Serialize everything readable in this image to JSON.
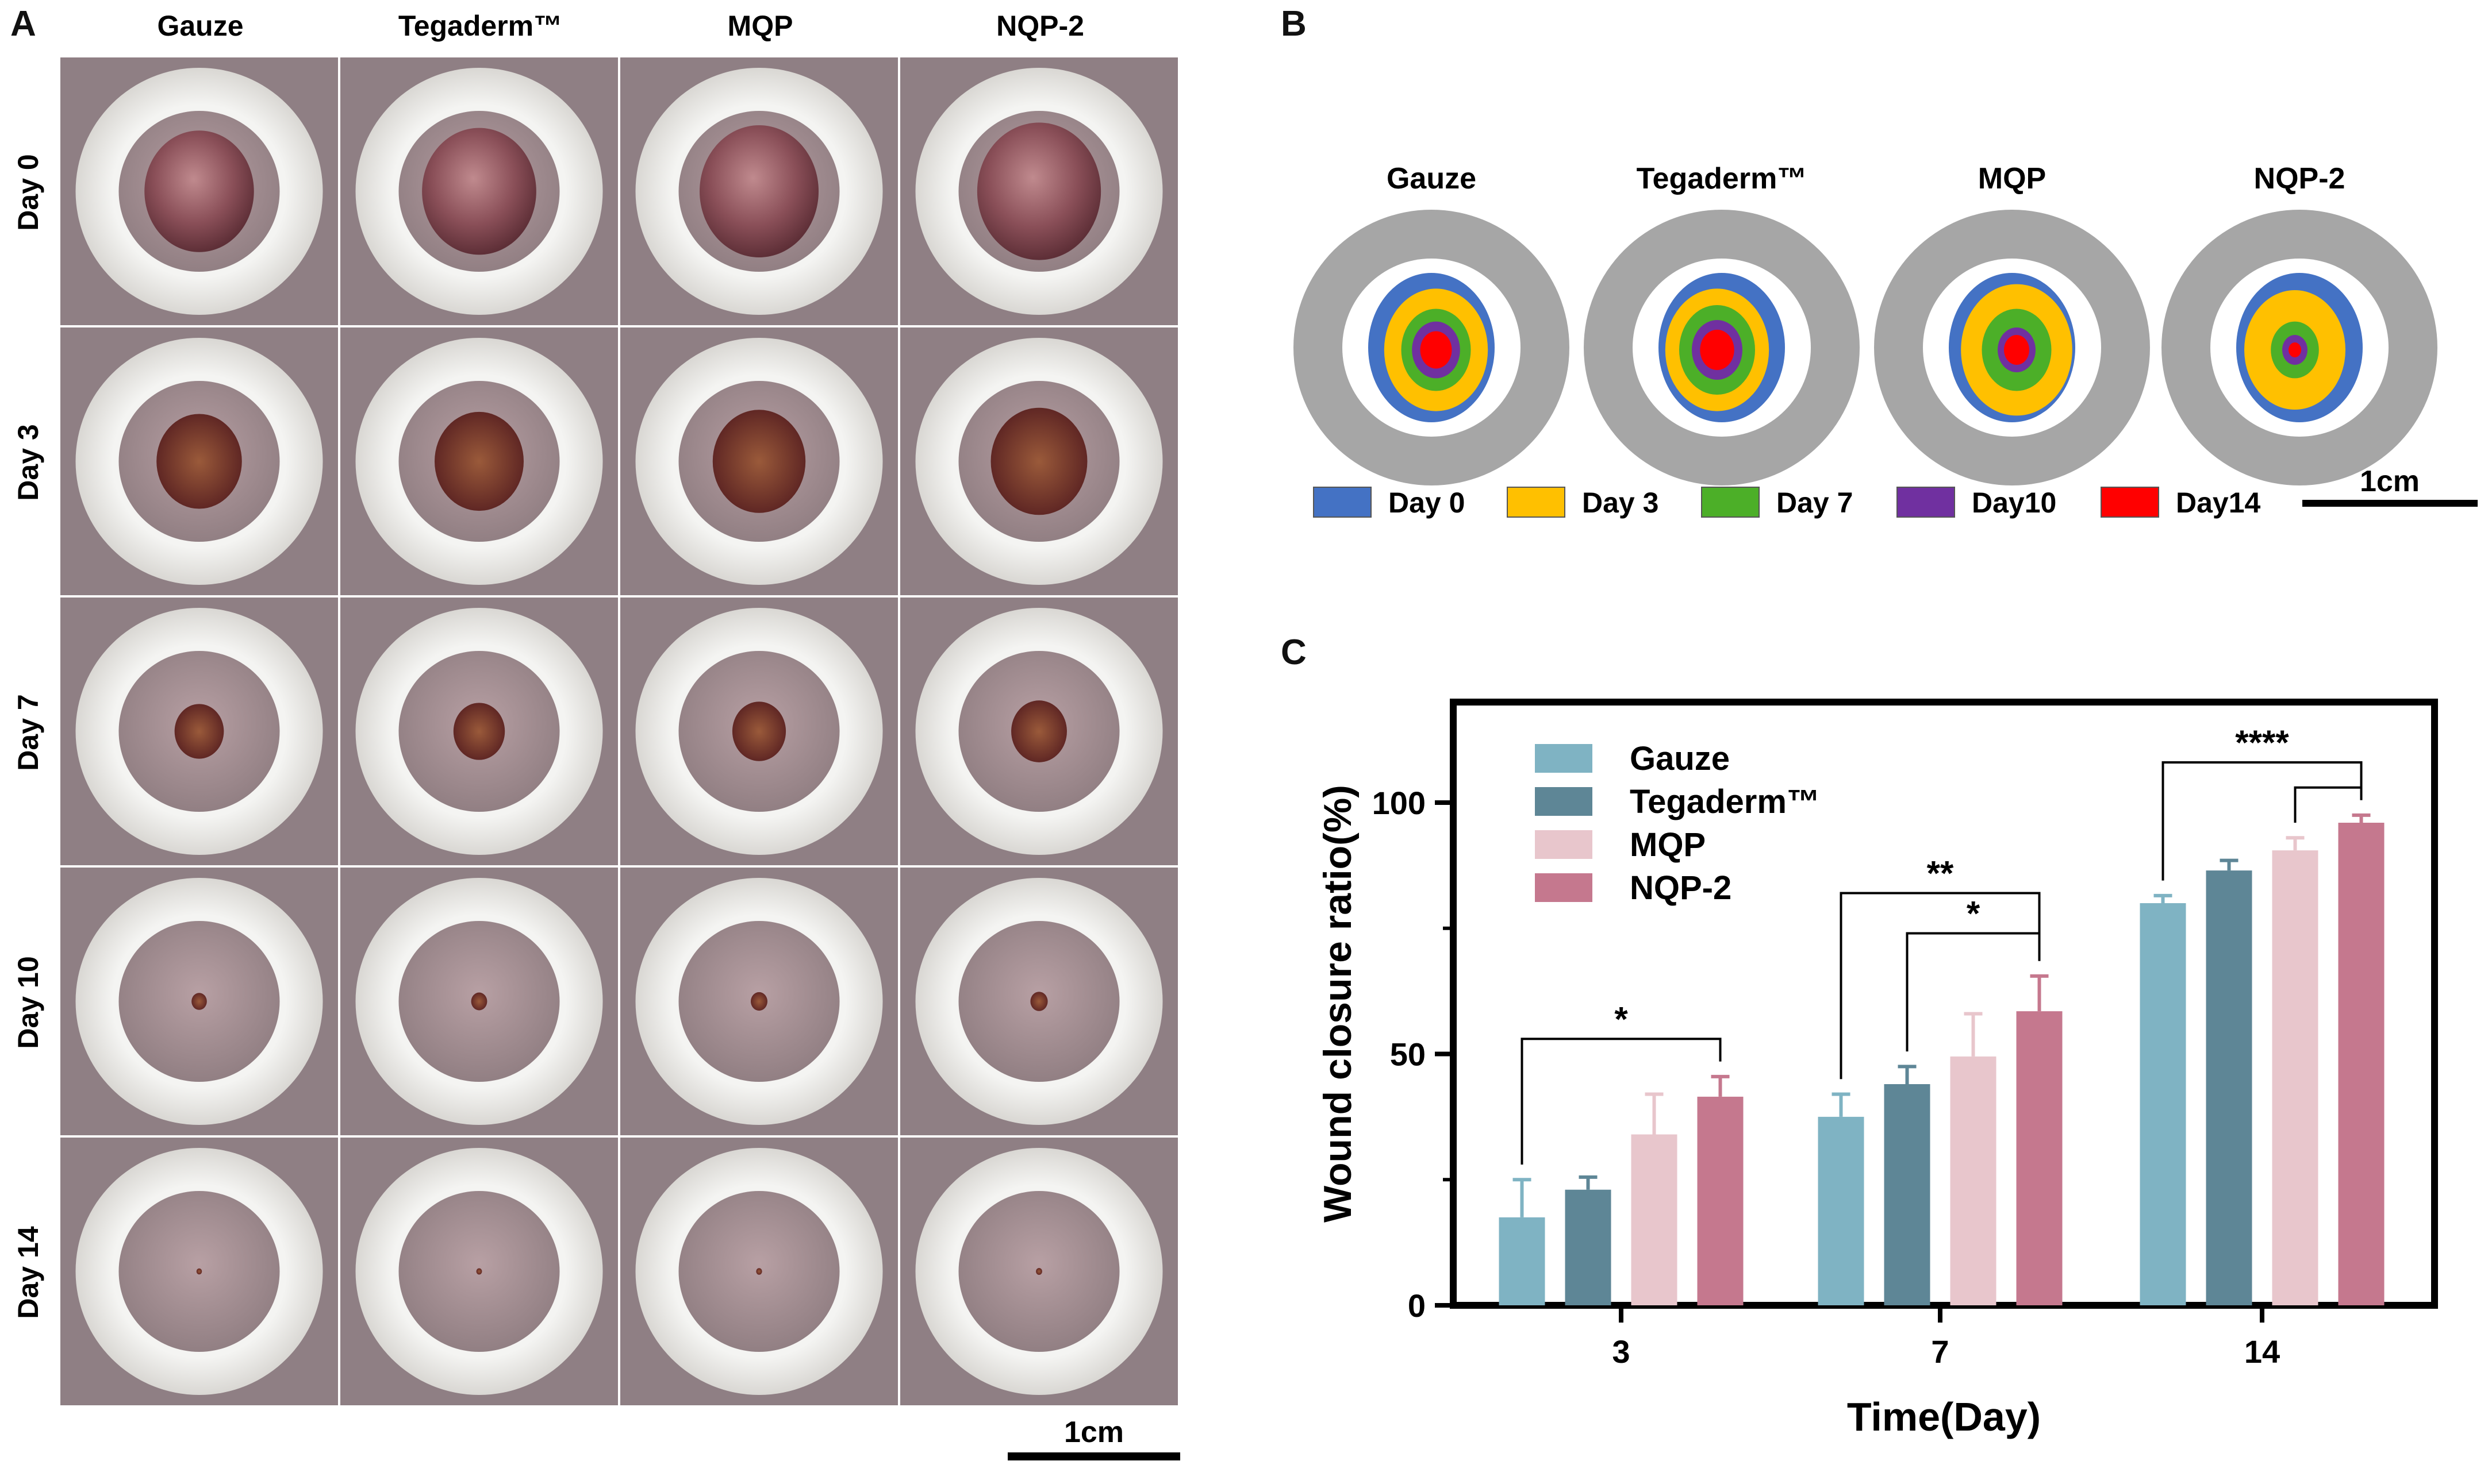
{
  "panels": {
    "a": "A",
    "b": "B",
    "c": "C"
  },
  "panel_a": {
    "columns": [
      "Gauze",
      "Tegaderm™",
      "MQP",
      "NQP-2"
    ],
    "rows": [
      "Day 0",
      "Day 3",
      "Day 7",
      "Day 10",
      "Day 14"
    ],
    "scale_label": "1cm",
    "wound_fraction_by_row": [
      1.0,
      0.78,
      0.45,
      0.14,
      0.05
    ]
  },
  "panel_b": {
    "groups": [
      "Gauze",
      "Tegaderm™",
      "MQP",
      "NQP-2"
    ],
    "legend": [
      {
        "label": "Day 0",
        "color": "#4472c4"
      },
      {
        "label": "Day 3",
        "color": "#ffc000"
      },
      {
        "label": "Day 7",
        "color": "#4caf28"
      },
      {
        "label": "Day10",
        "color": "#7030a0"
      },
      {
        "label": "Day14",
        "color": "#ff0000"
      }
    ],
    "scale_label": "1cm"
  },
  "chart_data": {
    "type": "bar",
    "title": "",
    "xlabel": "Time(Day)",
    "ylabel": "Wound closure ratio(%)",
    "categories": [
      "3",
      "7",
      "14"
    ],
    "ylim": [
      0,
      120
    ],
    "yticks": [
      0,
      50,
      100
    ],
    "series": [
      {
        "name": "Gauze",
        "color": "#7fb3c3",
        "values": [
          17.5,
          37.5,
          80.0
        ],
        "errors": [
          7.5,
          4.5,
          1.5
        ]
      },
      {
        "name": "Tegaderm™",
        "color": "#5e8696",
        "values": [
          23.0,
          44.0,
          86.5
        ],
        "errors": [
          2.5,
          3.5,
          2.0
        ]
      },
      {
        "name": "MQP",
        "color": "#e8c6cc",
        "values": [
          34.0,
          49.5,
          90.5
        ],
        "errors": [
          8.0,
          8.5,
          2.5
        ]
      },
      {
        "name": "NQP-2",
        "color": "#c5788e",
        "values": [
          41.5,
          58.5,
          96.0
        ],
        "errors": [
          4.0,
          7.0,
          1.5
        ]
      }
    ],
    "significance": [
      {
        "label": "*",
        "category": 0,
        "from": 0,
        "to": 3,
        "y": 53
      },
      {
        "label": "**",
        "category": 1,
        "from": 0,
        "to": 3,
        "y": 82
      },
      {
        "label": "*",
        "category": 1,
        "from": 1,
        "to": 3,
        "y": 74
      },
      {
        "label": "****",
        "category": 2,
        "from": 0,
        "to": 3,
        "y": 108
      },
      {
        "label": "",
        "category": 2,
        "from": 2,
        "to": 3,
        "y": 103
      }
    ],
    "legend_position": "top-left"
  }
}
